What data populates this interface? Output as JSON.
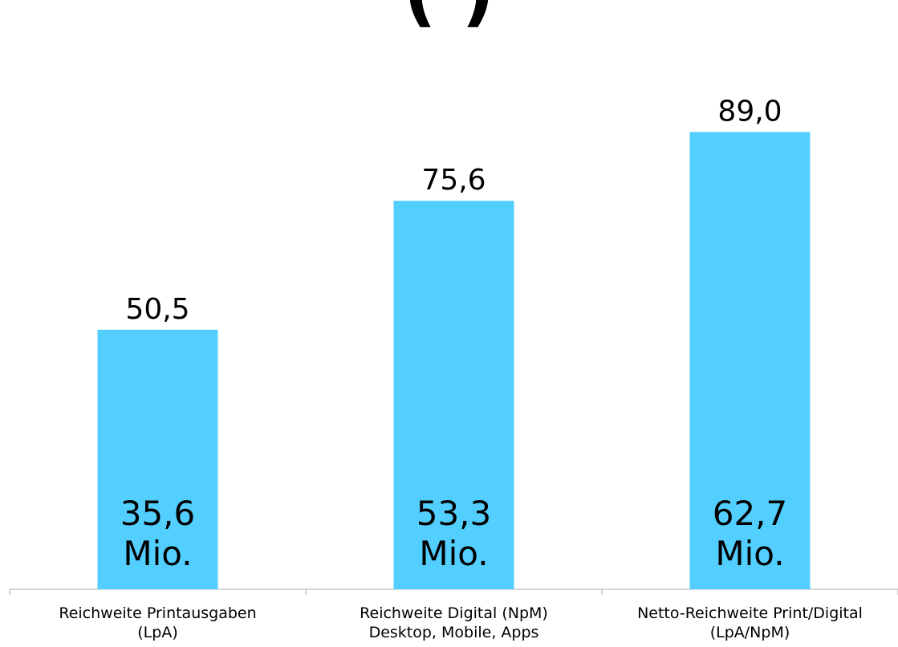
{
  "title": "(            )",
  "chart_data": {
    "type": "bar",
    "categories": [
      "Reichweite Printausgaben\n(LpA)",
      "Reichweite Digital (NpM)\nDesktop, Mobile, Apps",
      "Netto-Reichweite Print/Digital\n(LpA/NpM)"
    ],
    "values": [
      50.5,
      75.6,
      89.0
    ],
    "value_labels": [
      "50,5",
      "75,6",
      "89,0"
    ],
    "inner_labels": [
      "35,6\nMio.",
      "53,3\nMio.",
      "62,7\nMio."
    ],
    "ylim": [
      0,
      100
    ],
    "grid": false,
    "legend": "none",
    "bar_color": "#53cfff",
    "title": "",
    "xlabel": "",
    "ylabel": ""
  }
}
